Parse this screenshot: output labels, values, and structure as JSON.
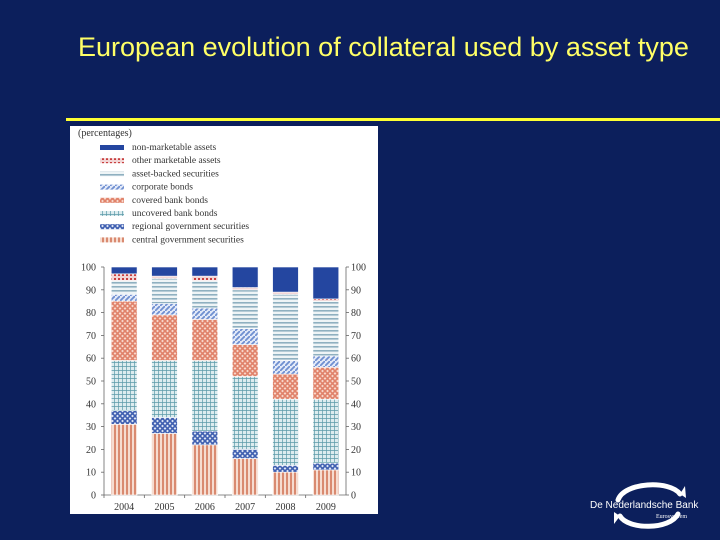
{
  "slide": {
    "title": "European evolution of collateral used by asset type"
  },
  "logo": {
    "name": "De Nederlandsche Bank",
    "sub": "Eurosysteem"
  },
  "chart_data": {
    "type": "bar",
    "stacked": true,
    "unit_label": "(percentages)",
    "categories": [
      "2004",
      "2005",
      "2006",
      "2007",
      "2008",
      "2009"
    ],
    "ylim": [
      0,
      100
    ],
    "yticks": [
      0,
      10,
      20,
      30,
      40,
      50,
      60,
      70,
      80,
      90,
      100
    ],
    "legend_position": "top-left",
    "series": [
      {
        "name": "central government securities",
        "color": "#e8b09a",
        "pattern": "vlines",
        "values": [
          31,
          27,
          22,
          16,
          10,
          11
        ]
      },
      {
        "name": "regional government securities",
        "color": "#3f5fb0",
        "pattern": "cross",
        "values": [
          6,
          7,
          6,
          4,
          3,
          3
        ]
      },
      {
        "name": "uncovered bank bonds",
        "color": "#5b9aa8",
        "pattern": "grid",
        "values": [
          22,
          25,
          31,
          32,
          29,
          28
        ]
      },
      {
        "name": "covered bank bonds",
        "color": "#e0826a",
        "pattern": "cross",
        "values": [
          26,
          20,
          18,
          14,
          11,
          14
        ]
      },
      {
        "name": "corporate bonds",
        "color": "#6f8fd0",
        "pattern": "diag",
        "values": [
          3,
          5,
          5,
          7,
          6,
          5
        ]
      },
      {
        "name": "asset-backed securities",
        "color": "#8fb0c0",
        "pattern": "hlines",
        "values": [
          6,
          11,
          12,
          17,
          29,
          24
        ]
      },
      {
        "name": "other marketable assets",
        "color": "#c84040",
        "pattern": "dots",
        "values": [
          3,
          1,
          2,
          1,
          1,
          1
        ]
      },
      {
        "name": "non-marketable assets",
        "color": "#2446a0",
        "pattern": "solid",
        "values": [
          3,
          4,
          4,
          9,
          11,
          14
        ]
      }
    ]
  }
}
